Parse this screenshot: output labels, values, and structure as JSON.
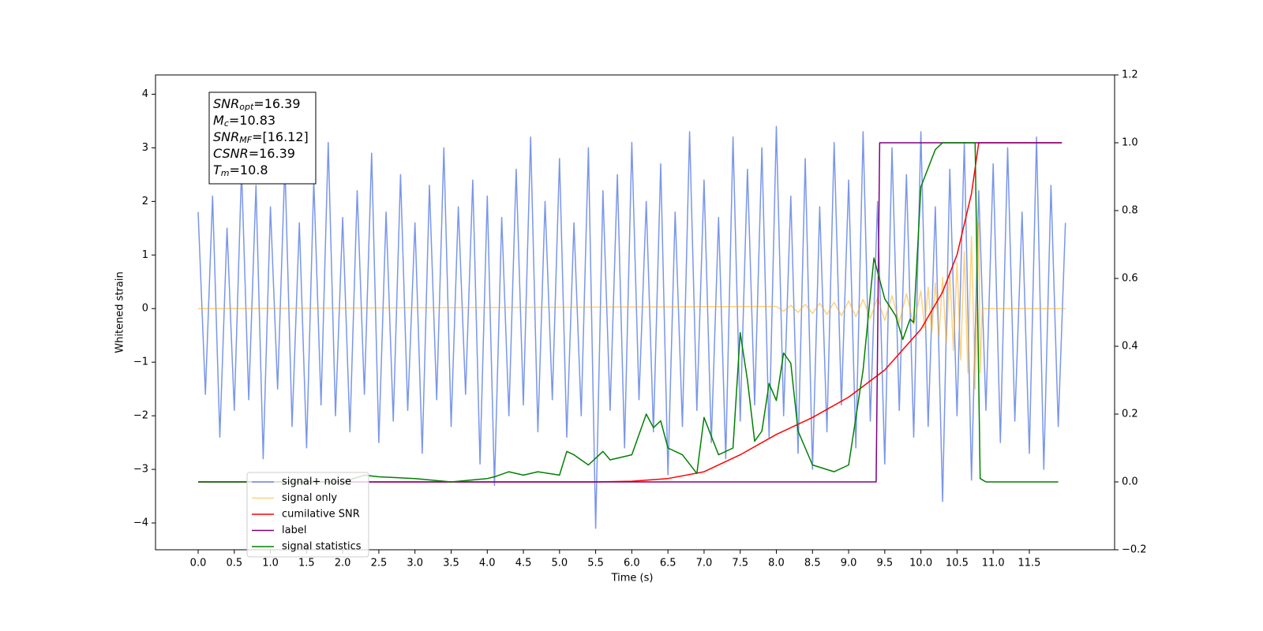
{
  "chart_data": {
    "type": "line",
    "xlabel": "Time (s)",
    "ylabel": "Whitened strain",
    "xlim": [
      -0.59,
      12.68
    ],
    "ylim": [
      -4.5,
      4.36
    ],
    "y2lim": [
      -0.2,
      1.2
    ],
    "xticks": [
      {
        "value": 0,
        "label": "0.0"
      },
      0.5,
      {
        "value": 1,
        "label": "1.0"
      },
      1.5,
      {
        "value": 2,
        "label": "2.0"
      },
      2.5,
      {
        "value": 3,
        "label": "3.0"
      },
      3.5,
      {
        "value": 4,
        "label": "4.0"
      },
      4.5,
      {
        "value": 5,
        "label": "5.0"
      },
      5.5,
      {
        "value": 6,
        "label": "6.0"
      },
      6.5,
      {
        "value": 7,
        "label": "7.0"
      },
      7.5,
      {
        "value": 8,
        "label": "8.0"
      },
      8.5,
      {
        "value": 9,
        "label": "9.0"
      },
      9.5,
      {
        "value": 10,
        "label": "10.0"
      },
      10.5,
      {
        "value": 11,
        "label": "11.0"
      },
      11.5
    ],
    "yticks": [
      {
        "value": -4,
        "label": "−4"
      },
      {
        "value": -3,
        "label": "−3"
      },
      {
        "value": -2,
        "label": "−2"
      },
      {
        "value": -1,
        "label": "−1"
      },
      0,
      1,
      2,
      3,
      4
    ],
    "y2ticks": [
      {
        "value": -0.2,
        "label": "−0.2"
      },
      {
        "value": 0,
        "label": "0.0"
      },
      0.2,
      0.4,
      0.6,
      0.8,
      {
        "value": 1,
        "label": "1.0"
      },
      1.2
    ],
    "grid": false,
    "legend": "lower left",
    "annotation": [
      {
        "main": "SNR",
        "sub": "opt",
        "rest": "=16.39"
      },
      {
        "main": "M",
        "sub": "c",
        "rest": "=10.83"
      },
      {
        "main": "SNR",
        "sub": "MF",
        "rest": "=[16.12]"
      },
      {
        "main": "CSNR",
        "rest": "=16.39"
      },
      {
        "main": "T",
        "sub": "m",
        "rest": "=10.8"
      }
    ],
    "series": [
      {
        "name": "signal+ noise",
        "color": "royalblue",
        "alpha": 0.7,
        "x": [
          0,
          0.1,
          0.2,
          0.3,
          0.4,
          0.5,
          0.6,
          0.7,
          0.8,
          0.9,
          1,
          1.1,
          1.2,
          1.3,
          1.4,
          1.5,
          1.6,
          1.7,
          1.8,
          1.9,
          2,
          2.1,
          2.2,
          2.3,
          2.4,
          2.5,
          2.6,
          2.7,
          2.8,
          2.9,
          3,
          3.1,
          3.2,
          3.3,
          3.4,
          3.5,
          3.6,
          3.7,
          3.8,
          3.9,
          4,
          4.1,
          4.2,
          4.3,
          4.4,
          4.5,
          4.6,
          4.7,
          4.8,
          4.9,
          5,
          5.1,
          5.2,
          5.3,
          5.4,
          5.5,
          5.6,
          5.7,
          5.8,
          5.9,
          6,
          6.1,
          6.2,
          6.3,
          6.4,
          6.5,
          6.6,
          6.7,
          6.8,
          6.9,
          7,
          7.1,
          7.2,
          7.3,
          7.4,
          7.5,
          7.6,
          7.7,
          7.8,
          7.9,
          8,
          8.1,
          8.2,
          8.3,
          8.4,
          8.5,
          8.6,
          8.7,
          8.8,
          8.9,
          9,
          9.1,
          9.2,
          9.3,
          9.4,
          9.5,
          9.6,
          9.7,
          9.8,
          9.9,
          10,
          10.1,
          10.2,
          10.3,
          10.4,
          10.5,
          10.6,
          10.7,
          10.8,
          10.9,
          11,
          11.1,
          11.2,
          11.3,
          11.4,
          11.5,
          11.6,
          11.7,
          11.8,
          11.9,
          12
        ],
        "values": [
          1.8,
          -1.6,
          2.1,
          -2.4,
          1.5,
          -1.9,
          2.6,
          -1.7,
          2.3,
          -2.8,
          1.9,
          -1.5,
          2.7,
          -2.2,
          1.6,
          -2.6,
          2.4,
          -1.8,
          3.1,
          -2.0,
          1.7,
          -2.3,
          2.2,
          -1.6,
          2.9,
          -2.5,
          1.8,
          -2.1,
          2.5,
          -1.9,
          1.6,
          -2.7,
          2.3,
          -1.7,
          3.0,
          -2.2,
          1.9,
          -1.6,
          2.4,
          -2.9,
          2.1,
          -3.3,
          1.7,
          -2.0,
          2.6,
          -1.8,
          3.2,
          -2.3,
          2.0,
          -1.7,
          2.8,
          -2.4,
          1.6,
          -2.0,
          3.0,
          -4.1,
          2.2,
          -1.9,
          2.5,
          -2.6,
          3.1,
          -1.7,
          2.0,
          -2.3,
          2.7,
          -3.1,
          1.8,
          -2.2,
          3.3,
          -1.9,
          2.4,
          -2.5,
          1.7,
          -2.8,
          3.2,
          -2.1,
          2.6,
          -1.8,
          3.0,
          -2.4,
          3.4,
          -2.0,
          2.1,
          -2.7,
          2.8,
          -3.0,
          1.9,
          -2.3,
          3.1,
          -1.8,
          2.4,
          -2.6,
          3.3,
          -2.1,
          2.0,
          -2.9,
          3.0,
          -1.9,
          2.5,
          -2.4,
          3.3,
          -2.2,
          1.9,
          -3.6,
          2.6,
          -2.0,
          3.1,
          -3.2,
          2.2,
          -1.9,
          2.7,
          -2.5,
          3.0,
          -2.1,
          1.8,
          -2.7,
          3.2,
          -3.0,
          2.3,
          -2.2,
          1.6
        ]
      },
      {
        "name": "signal only",
        "color": "orange",
        "alpha": 0.5,
        "x": [
          0,
          8,
          8.1,
          8.2,
          8.3,
          8.4,
          8.5,
          8.6,
          8.7,
          8.8,
          8.9,
          9,
          9.1,
          9.2,
          9.3,
          9.4,
          9.5,
          9.6,
          9.7,
          9.8,
          9.9,
          10,
          10.05,
          10.1,
          10.15,
          10.2,
          10.25,
          10.3,
          10.35,
          10.4,
          10.45,
          10.5,
          10.55,
          10.6,
          10.65,
          10.7,
          10.75,
          10.8,
          10.82,
          10.85,
          12
        ],
        "values": [
          0,
          0.04,
          -0.05,
          0.06,
          -0.07,
          0.08,
          -0.09,
          0.1,
          -0.11,
          0.12,
          -0.13,
          0.14,
          -0.15,
          0.17,
          -0.18,
          0.2,
          -0.22,
          0.24,
          -0.26,
          0.28,
          -0.3,
          0.33,
          -0.36,
          0.4,
          -0.44,
          0.48,
          -0.53,
          0.58,
          -0.64,
          0.7,
          -0.78,
          0.86,
          -0.96,
          1.06,
          -1.2,
          1.35,
          -1.5,
          1.6,
          -1.2,
          0,
          0
        ]
      },
      {
        "name": "cumilative SNR",
        "color": "red",
        "axis": "y2",
        "x": [
          0,
          5.5,
          6,
          6.5,
          7,
          7.5,
          8,
          8.5,
          9,
          9.5,
          10,
          10.3,
          10.5,
          10.7,
          10.8,
          11.95
        ],
        "values": [
          0,
          0,
          0.002,
          0.01,
          0.03,
          0.08,
          0.14,
          0.19,
          0.25,
          0.33,
          0.45,
          0.56,
          0.67,
          0.85,
          1,
          1
        ]
      },
      {
        "name": "label",
        "color": "purple",
        "axis": "y2",
        "x": [
          0,
          9.38,
          9.43,
          11.95
        ],
        "values": [
          0,
          0,
          1,
          1
        ]
      },
      {
        "name": "signal statistics",
        "color": "green",
        "axis": "y2",
        "x": [
          0,
          2,
          2.3,
          2.5,
          3,
          3.5,
          4,
          4.1,
          4.3,
          4.5,
          4.7,
          5,
          5.1,
          5.2,
          5.4,
          5.6,
          5.7,
          6,
          6.2,
          6.3,
          6.4,
          6.5,
          6.7,
          6.9,
          7,
          7.2,
          7.4,
          7.5,
          7.6,
          7.7,
          7.8,
          7.9,
          8,
          8.1,
          8.2,
          8.3,
          8.5,
          8.8,
          9,
          9.2,
          9.35,
          9.5,
          9.65,
          9.75,
          9.85,
          9.9,
          10,
          10.2,
          10.3,
          10.75,
          10.82,
          10.9,
          11.9
        ],
        "values": [
          0,
          0,
          0.02,
          0.015,
          0.01,
          0,
          0.01,
          0.015,
          0.03,
          0.02,
          0.03,
          0.02,
          0.09,
          0.08,
          0.05,
          0.09,
          0.065,
          0.08,
          0.2,
          0.16,
          0.18,
          0.1,
          0.08,
          0.025,
          0.19,
          0.08,
          0.1,
          0.44,
          0.3,
          0.12,
          0.15,
          0.29,
          0.24,
          0.38,
          0.35,
          0.15,
          0.05,
          0.03,
          0.05,
          0.33,
          0.66,
          0.54,
          0.49,
          0.42,
          0.48,
          0.47,
          0.87,
          0.98,
          1,
          1,
          0.01,
          0,
          0
        ]
      }
    ]
  }
}
